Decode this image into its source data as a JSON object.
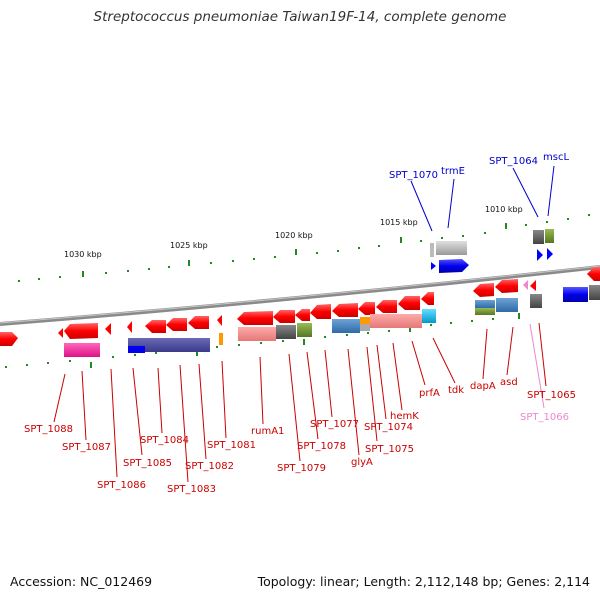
{
  "title": "Streptococcus pneumoniae Taiwan19F-14, complete genome",
  "footer": {
    "accession": "Accession: NC_012469",
    "stats": "Topology: linear; Length: 2,112,148 bp; Genes: 2,114"
  },
  "colors": {
    "gene_red": "#ff0000",
    "gene_blue": "#0000ff",
    "label_red": "#cc0000",
    "label_blue": "#0000cc",
    "label_pink": "#ee88cc",
    "backbone": "#888888",
    "tick_green": "#228822"
  },
  "kbp_labels": [
    "1030 kbp",
    "1025 kbp",
    "1020 kbp",
    "1015 kbp",
    "1010 kbp"
  ],
  "upper_labels": [
    {
      "text": "SPT_1070",
      "color": "blue"
    },
    {
      "text": "trmE",
      "color": "blue"
    },
    {
      "text": "SPT_1064",
      "color": "blue"
    },
    {
      "text": "mscL",
      "color": "blue"
    }
  ],
  "lower_labels": [
    {
      "text": "SPT_1088",
      "color": "red"
    },
    {
      "text": "SPT_1087",
      "color": "red"
    },
    {
      "text": "SPT_1086",
      "color": "red"
    },
    {
      "text": "SPT_1085",
      "color": "red"
    },
    {
      "text": "SPT_1084",
      "color": "red"
    },
    {
      "text": "SPT_1083",
      "color": "red"
    },
    {
      "text": "SPT_1082",
      "color": "red"
    },
    {
      "text": "SPT_1081",
      "color": "red"
    },
    {
      "text": "rumA1",
      "color": "red"
    },
    {
      "text": "SPT_1079",
      "color": "red"
    },
    {
      "text": "SPT_1078",
      "color": "red"
    },
    {
      "text": "SPT_1077",
      "color": "red"
    },
    {
      "text": "glyA",
      "color": "red"
    },
    {
      "text": "SPT_1075",
      "color": "red"
    },
    {
      "text": "SPT_1074",
      "color": "red"
    },
    {
      "text": "hemK",
      "color": "red"
    },
    {
      "text": "prfA",
      "color": "red"
    },
    {
      "text": "tdk",
      "color": "red"
    },
    {
      "text": "dapA",
      "color": "red"
    },
    {
      "text": "asd",
      "color": "red"
    },
    {
      "text": "SPT_1065",
      "color": "red"
    },
    {
      "text": "SPT_1066",
      "color": "pink"
    }
  ]
}
